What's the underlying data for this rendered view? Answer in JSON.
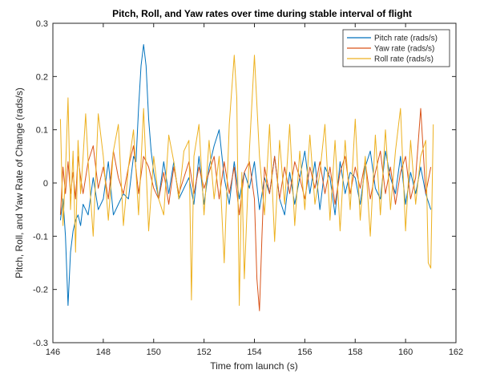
{
  "chart_data": {
    "type": "line",
    "title": "Pitch, Roll, and Yaw rates over time during stable interval of flight",
    "xlabel": "Time from launch (s)",
    "ylabel": "Pitch, Roll, and Yaw Rate of Change (rads/s)",
    "xlim": [
      146,
      162
    ],
    "ylim": [
      -0.3,
      0.3
    ],
    "xticks": [
      146,
      148,
      150,
      152,
      154,
      156,
      158,
      160,
      162
    ],
    "yticks": [
      -0.3,
      -0.2,
      -0.1,
      0,
      0.1,
      0.2,
      0.3
    ],
    "xtick_labels": [
      "146",
      "148",
      "150",
      "152",
      "154",
      "156",
      "158",
      "160",
      "162"
    ],
    "ytick_labels": [
      "-0.3",
      "-0.2",
      "-0.1",
      "0",
      "0.1",
      "0.2",
      "0.3"
    ],
    "grid": false,
    "legend_position": "top-right",
    "series": [
      {
        "name": "Pitch rate (rads/s)",
        "color": "#0072BD",
        "x": [
          146.3,
          146.4,
          146.5,
          146.6,
          146.7,
          146.8,
          146.9,
          147.0,
          147.1,
          147.2,
          147.4,
          147.6,
          147.8,
          148.0,
          148.2,
          148.4,
          148.6,
          148.8,
          149.0,
          149.2,
          149.3,
          149.4,
          149.5,
          149.6,
          149.7,
          149.8,
          149.9,
          150.0,
          150.2,
          150.4,
          150.6,
          150.8,
          151.0,
          151.2,
          151.4,
          151.6,
          151.8,
          152.0,
          152.2,
          152.4,
          152.6,
          152.8,
          153.0,
          153.2,
          153.4,
          153.6,
          153.8,
          154.0,
          154.2,
          154.4,
          154.6,
          154.8,
          155.0,
          155.2,
          155.4,
          155.6,
          155.8,
          156.0,
          156.2,
          156.4,
          156.6,
          156.8,
          157.0,
          157.2,
          157.4,
          157.6,
          157.8,
          158.0,
          158.2,
          158.4,
          158.6,
          158.8,
          159.0,
          159.2,
          159.4,
          159.6,
          159.8,
          160.0,
          160.2,
          160.4,
          160.6,
          160.8,
          161.0
        ],
        "y": [
          -0.07,
          -0.03,
          -0.1,
          -0.23,
          -0.13,
          -0.09,
          -0.07,
          -0.06,
          -0.08,
          -0.04,
          -0.06,
          0.01,
          -0.05,
          -0.03,
          0.04,
          -0.06,
          -0.04,
          -0.02,
          -0.03,
          0.05,
          0.04,
          0.14,
          0.22,
          0.26,
          0.22,
          0.12,
          0.06,
          0.02,
          -0.03,
          0.04,
          -0.02,
          0.04,
          -0.03,
          -0.01,
          0.01,
          -0.04,
          0.05,
          -0.04,
          0.03,
          0.07,
          0.1,
          0.01,
          -0.04,
          0.04,
          -0.03,
          0.02,
          -0.01,
          0.04,
          -0.05,
          0.01,
          -0.02,
          0.05,
          -0.03,
          -0.06,
          0.02,
          -0.04,
          0.01,
          0.06,
          -0.02,
          0.04,
          -0.05,
          0.03,
          0.01,
          -0.06,
          0.04,
          -0.02,
          0.02,
          0.01,
          -0.04,
          0.03,
          0.06,
          -0.01,
          -0.03,
          0.06,
          0.01,
          -0.02,
          0.05,
          -0.04,
          0.02,
          -0.02,
          0.03,
          -0.02,
          -0.05
        ]
      },
      {
        "name": "Yaw rate (rads/s)",
        "color": "#D95319",
        "x": [
          146.3,
          146.4,
          146.5,
          146.6,
          146.7,
          146.8,
          146.9,
          147.0,
          147.1,
          147.2,
          147.4,
          147.6,
          147.8,
          148.0,
          148.2,
          148.4,
          148.6,
          148.8,
          149.0,
          149.2,
          149.4,
          149.6,
          149.8,
          150.0,
          150.2,
          150.4,
          150.6,
          150.8,
          151.0,
          151.2,
          151.4,
          151.6,
          151.8,
          152.0,
          152.2,
          152.4,
          152.6,
          152.8,
          153.0,
          153.2,
          153.4,
          153.6,
          153.8,
          154.0,
          154.1,
          154.2,
          154.3,
          154.4,
          154.6,
          154.8,
          155.0,
          155.2,
          155.4,
          155.6,
          155.8,
          156.0,
          156.2,
          156.4,
          156.6,
          156.8,
          157.0,
          157.2,
          157.4,
          157.6,
          157.8,
          158.0,
          158.2,
          158.4,
          158.6,
          158.8,
          159.0,
          159.2,
          159.4,
          159.6,
          159.8,
          160.0,
          160.2,
          160.4,
          160.6,
          160.8,
          161.0
        ],
        "y": [
          -0.06,
          0.03,
          -0.02,
          0.04,
          -0.02,
          0.02,
          -0.03,
          0.05,
          0.01,
          -0.02,
          0.04,
          0.07,
          -0.01,
          0.03,
          -0.03,
          0.06,
          0.01,
          -0.02,
          0.03,
          0.07,
          -0.02,
          0.05,
          0.03,
          -0.01,
          -0.03,
          0.02,
          -0.04,
          0.03,
          -0.02,
          0.01,
          0.04,
          -0.02,
          0.03,
          -0.01,
          0.02,
          0.05,
          -0.03,
          0.04,
          -0.02,
          0.03,
          -0.06,
          0.02,
          0.04,
          -0.03,
          -0.18,
          -0.24,
          -0.1,
          0.03,
          -0.02,
          0.05,
          -0.03,
          0.03,
          -0.02,
          0.04,
          0.01,
          -0.03,
          0.03,
          -0.01,
          0.04,
          -0.02,
          0.03,
          -0.04,
          0.02,
          0.05,
          -0.02,
          0.03,
          -0.01,
          0.04,
          -0.03,
          0.02,
          0.06,
          -0.02,
          0.03,
          -0.04,
          0.02,
          0.05,
          -0.03,
          0.01,
          0.14,
          -0.02,
          0.03
        ]
      },
      {
        "name": "Roll rate (rads/s)",
        "color": "#EDB120",
        "x": [
          146.3,
          146.4,
          146.5,
          146.6,
          146.7,
          146.8,
          146.9,
          147.0,
          147.1,
          147.2,
          147.3,
          147.4,
          147.6,
          147.8,
          148.0,
          148.2,
          148.4,
          148.6,
          148.8,
          149.0,
          149.2,
          149.4,
          149.6,
          149.8,
          150.0,
          150.2,
          150.4,
          150.6,
          150.8,
          151.0,
          151.2,
          151.4,
          151.5,
          151.6,
          151.8,
          152.0,
          152.2,
          152.4,
          152.6,
          152.8,
          153.0,
          153.2,
          153.3,
          153.4,
          153.5,
          153.6,
          153.8,
          154.0,
          154.2,
          154.4,
          154.6,
          154.8,
          155.0,
          155.2,
          155.4,
          155.6,
          155.8,
          156.0,
          156.2,
          156.4,
          156.6,
          156.8,
          157.0,
          157.2,
          157.4,
          157.6,
          157.8,
          158.0,
          158.2,
          158.4,
          158.6,
          158.8,
          159.0,
          159.2,
          159.4,
          159.6,
          159.8,
          160.0,
          160.2,
          160.4,
          160.6,
          160.8,
          160.9,
          161.0,
          161.1
        ],
        "y": [
          0.12,
          -0.08,
          0.02,
          0.16,
          -0.05,
          0.06,
          -0.13,
          0.08,
          -0.02,
          0.05,
          0.13,
          0.04,
          -0.1,
          0.13,
          0.05,
          -0.07,
          0.06,
          0.11,
          -0.08,
          0.03,
          0.1,
          -0.06,
          0.14,
          -0.09,
          0.05,
          -0.03,
          -0.06,
          0.09,
          0.04,
          -0.03,
          0.06,
          0.08,
          -0.22,
          0.05,
          0.11,
          -0.06,
          0.08,
          -0.03,
          0.05,
          -0.15,
          0.11,
          0.24,
          0.16,
          -0.23,
          0.02,
          -0.18,
          0.06,
          0.24,
          0.05,
          -0.06,
          0.11,
          -0.11,
          0.08,
          -0.04,
          0.11,
          -0.08,
          0.06,
          -0.05,
          0.09,
          -0.04,
          0.02,
          0.11,
          -0.07,
          0.08,
          -0.09,
          0.08,
          -0.05,
          0.12,
          -0.07,
          0.05,
          -0.1,
          0.09,
          -0.06,
          0.1,
          -0.05,
          0.06,
          0.14,
          -0.09,
          0.08,
          -0.04,
          0.05,
          0.08,
          -0.15,
          -0.16,
          0.11
        ]
      }
    ]
  }
}
